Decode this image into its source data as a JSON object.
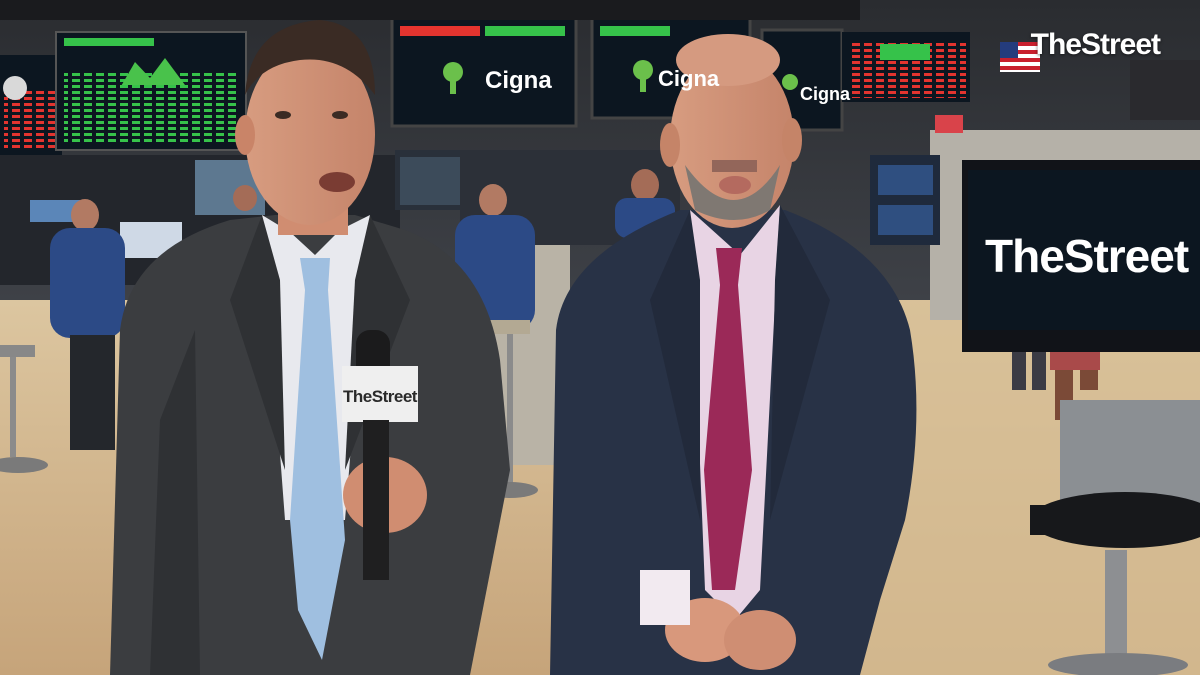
{
  "watermark": {
    "brand": "TheStreet"
  },
  "screens": {
    "board_left_brand": "Cigna",
    "board_center_brand": "Cigna",
    "board_right_brand": "Cigna"
  },
  "monitor_right": {
    "brand": "TheStreet"
  },
  "mic_flag": {
    "brand": "TheStreet"
  },
  "colors": {
    "floor": "#cdb088",
    "screen_dark": "#0c1620",
    "cigna_green": "#6bc04b",
    "ticker_red": "#e2342f",
    "ticker_green": "#36c24a",
    "suit_grey": "#3b3d40",
    "suit_navy": "#283246",
    "tie_blue": "#9fbfe0",
    "tie_magenta": "#9b2958"
  },
  "icons": [
    "american-flag-icon",
    "cigna-tree-logo-icon"
  ]
}
